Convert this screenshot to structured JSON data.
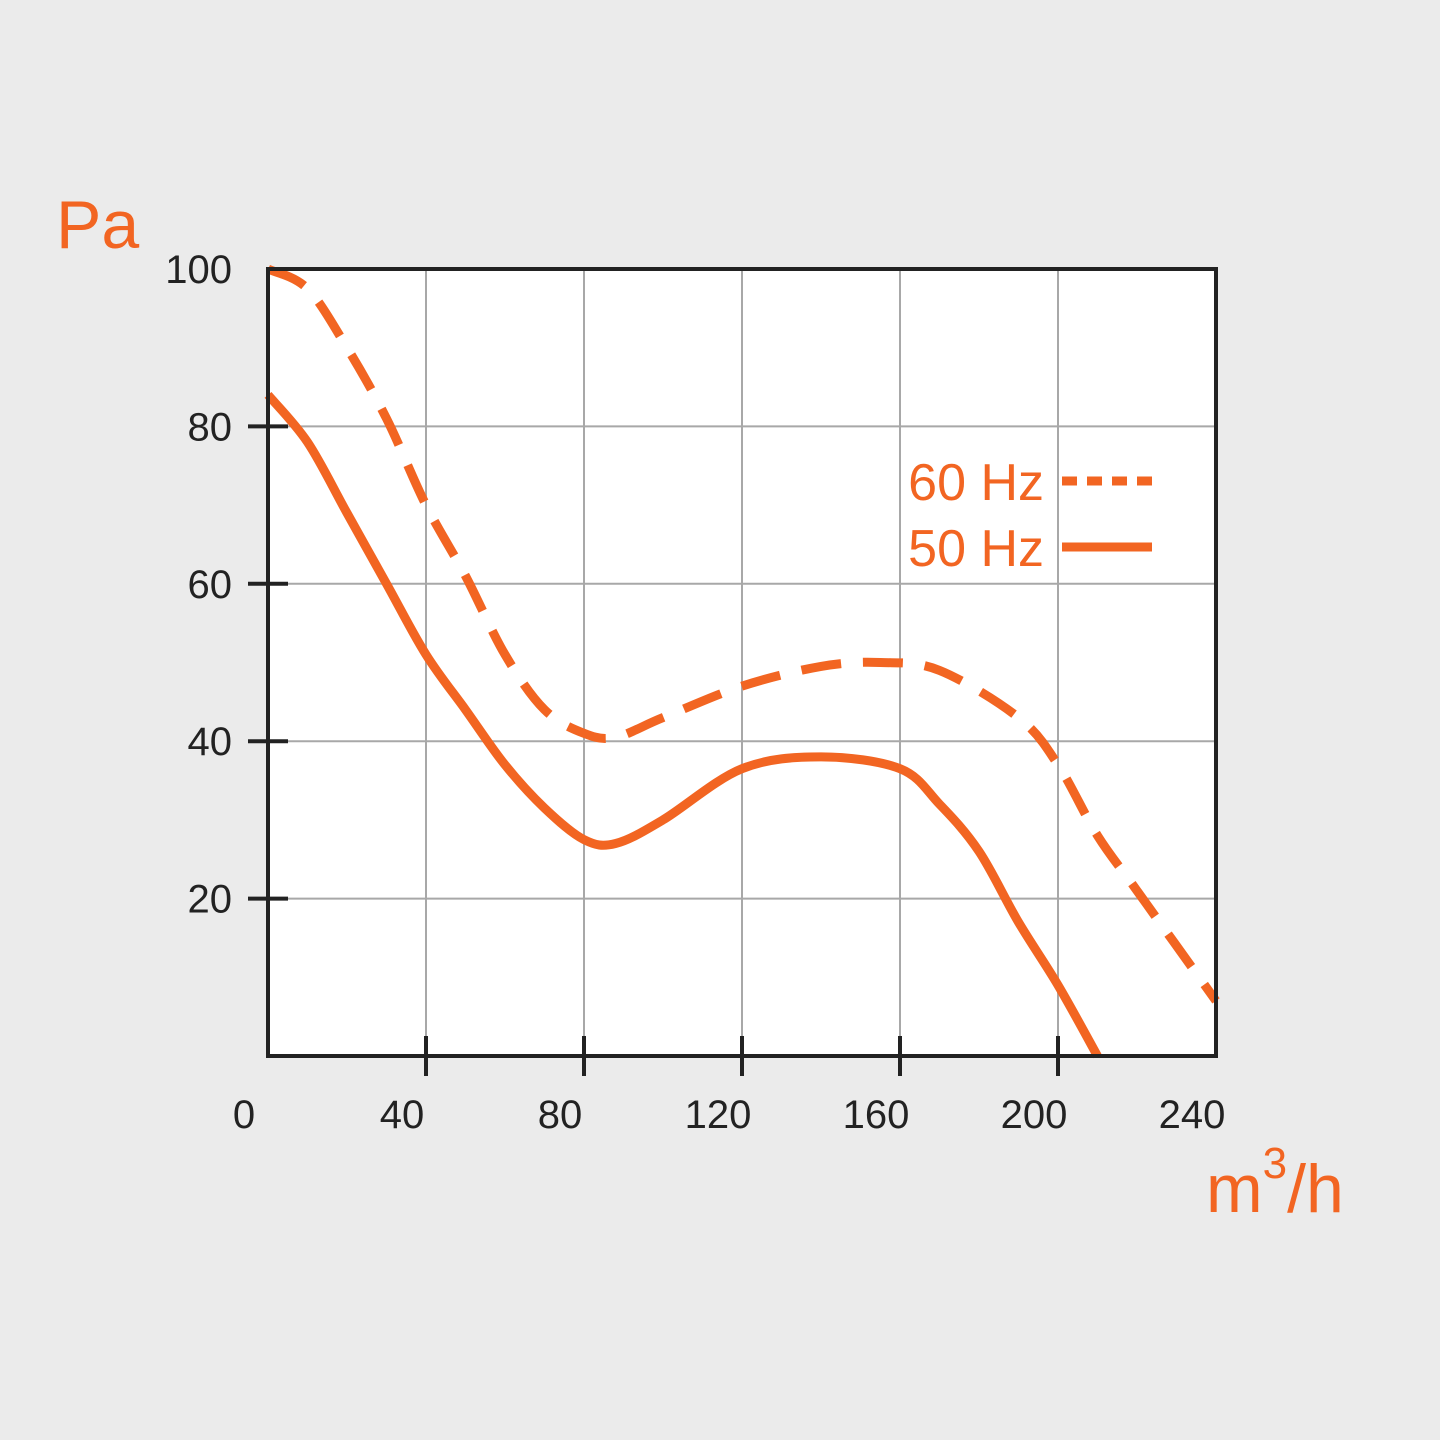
{
  "chart_data": {
    "type": "line",
    "ylabel": "Pa",
    "xlabel_base": "m",
    "xlabel_sup": "3",
    "xlabel_rest": "/h",
    "xlim": [
      0,
      240
    ],
    "ylim": [
      0,
      100
    ],
    "x_ticks": [
      "0",
      "40",
      "80",
      "120",
      "160",
      "200",
      "240"
    ],
    "y_ticks": [
      "100",
      "80",
      "60",
      "40",
      "20"
    ],
    "grid": true,
    "legend_position": "top-right",
    "accent_color": "#f26522",
    "series": [
      {
        "name": "60 Hz",
        "style": "dashed",
        "x": [
          0,
          10,
          20,
          30,
          40,
          50,
          60,
          70,
          80,
          88,
          100,
          120,
          140,
          155,
          170,
          190,
          200,
          210,
          220,
          240
        ],
        "y": [
          100,
          97.5,
          90,
          81,
          70,
          61,
          51,
          44,
          41,
          40.5,
          43,
          47,
          49.5,
          50,
          49,
          43,
          37,
          28,
          21,
          7
        ]
      },
      {
        "name": "50 Hz",
        "style": "solid",
        "x": [
          0,
          10,
          20,
          30,
          40,
          50,
          60,
          70,
          80,
          88,
          100,
          120,
          140,
          160,
          170,
          180,
          190,
          200,
          210
        ],
        "y": [
          84,
          78,
          69,
          60,
          51,
          44,
          37,
          31.5,
          27.5,
          27,
          30,
          36.5,
          38,
          36.5,
          32,
          26,
          17,
          9,
          0
        ]
      }
    ]
  }
}
